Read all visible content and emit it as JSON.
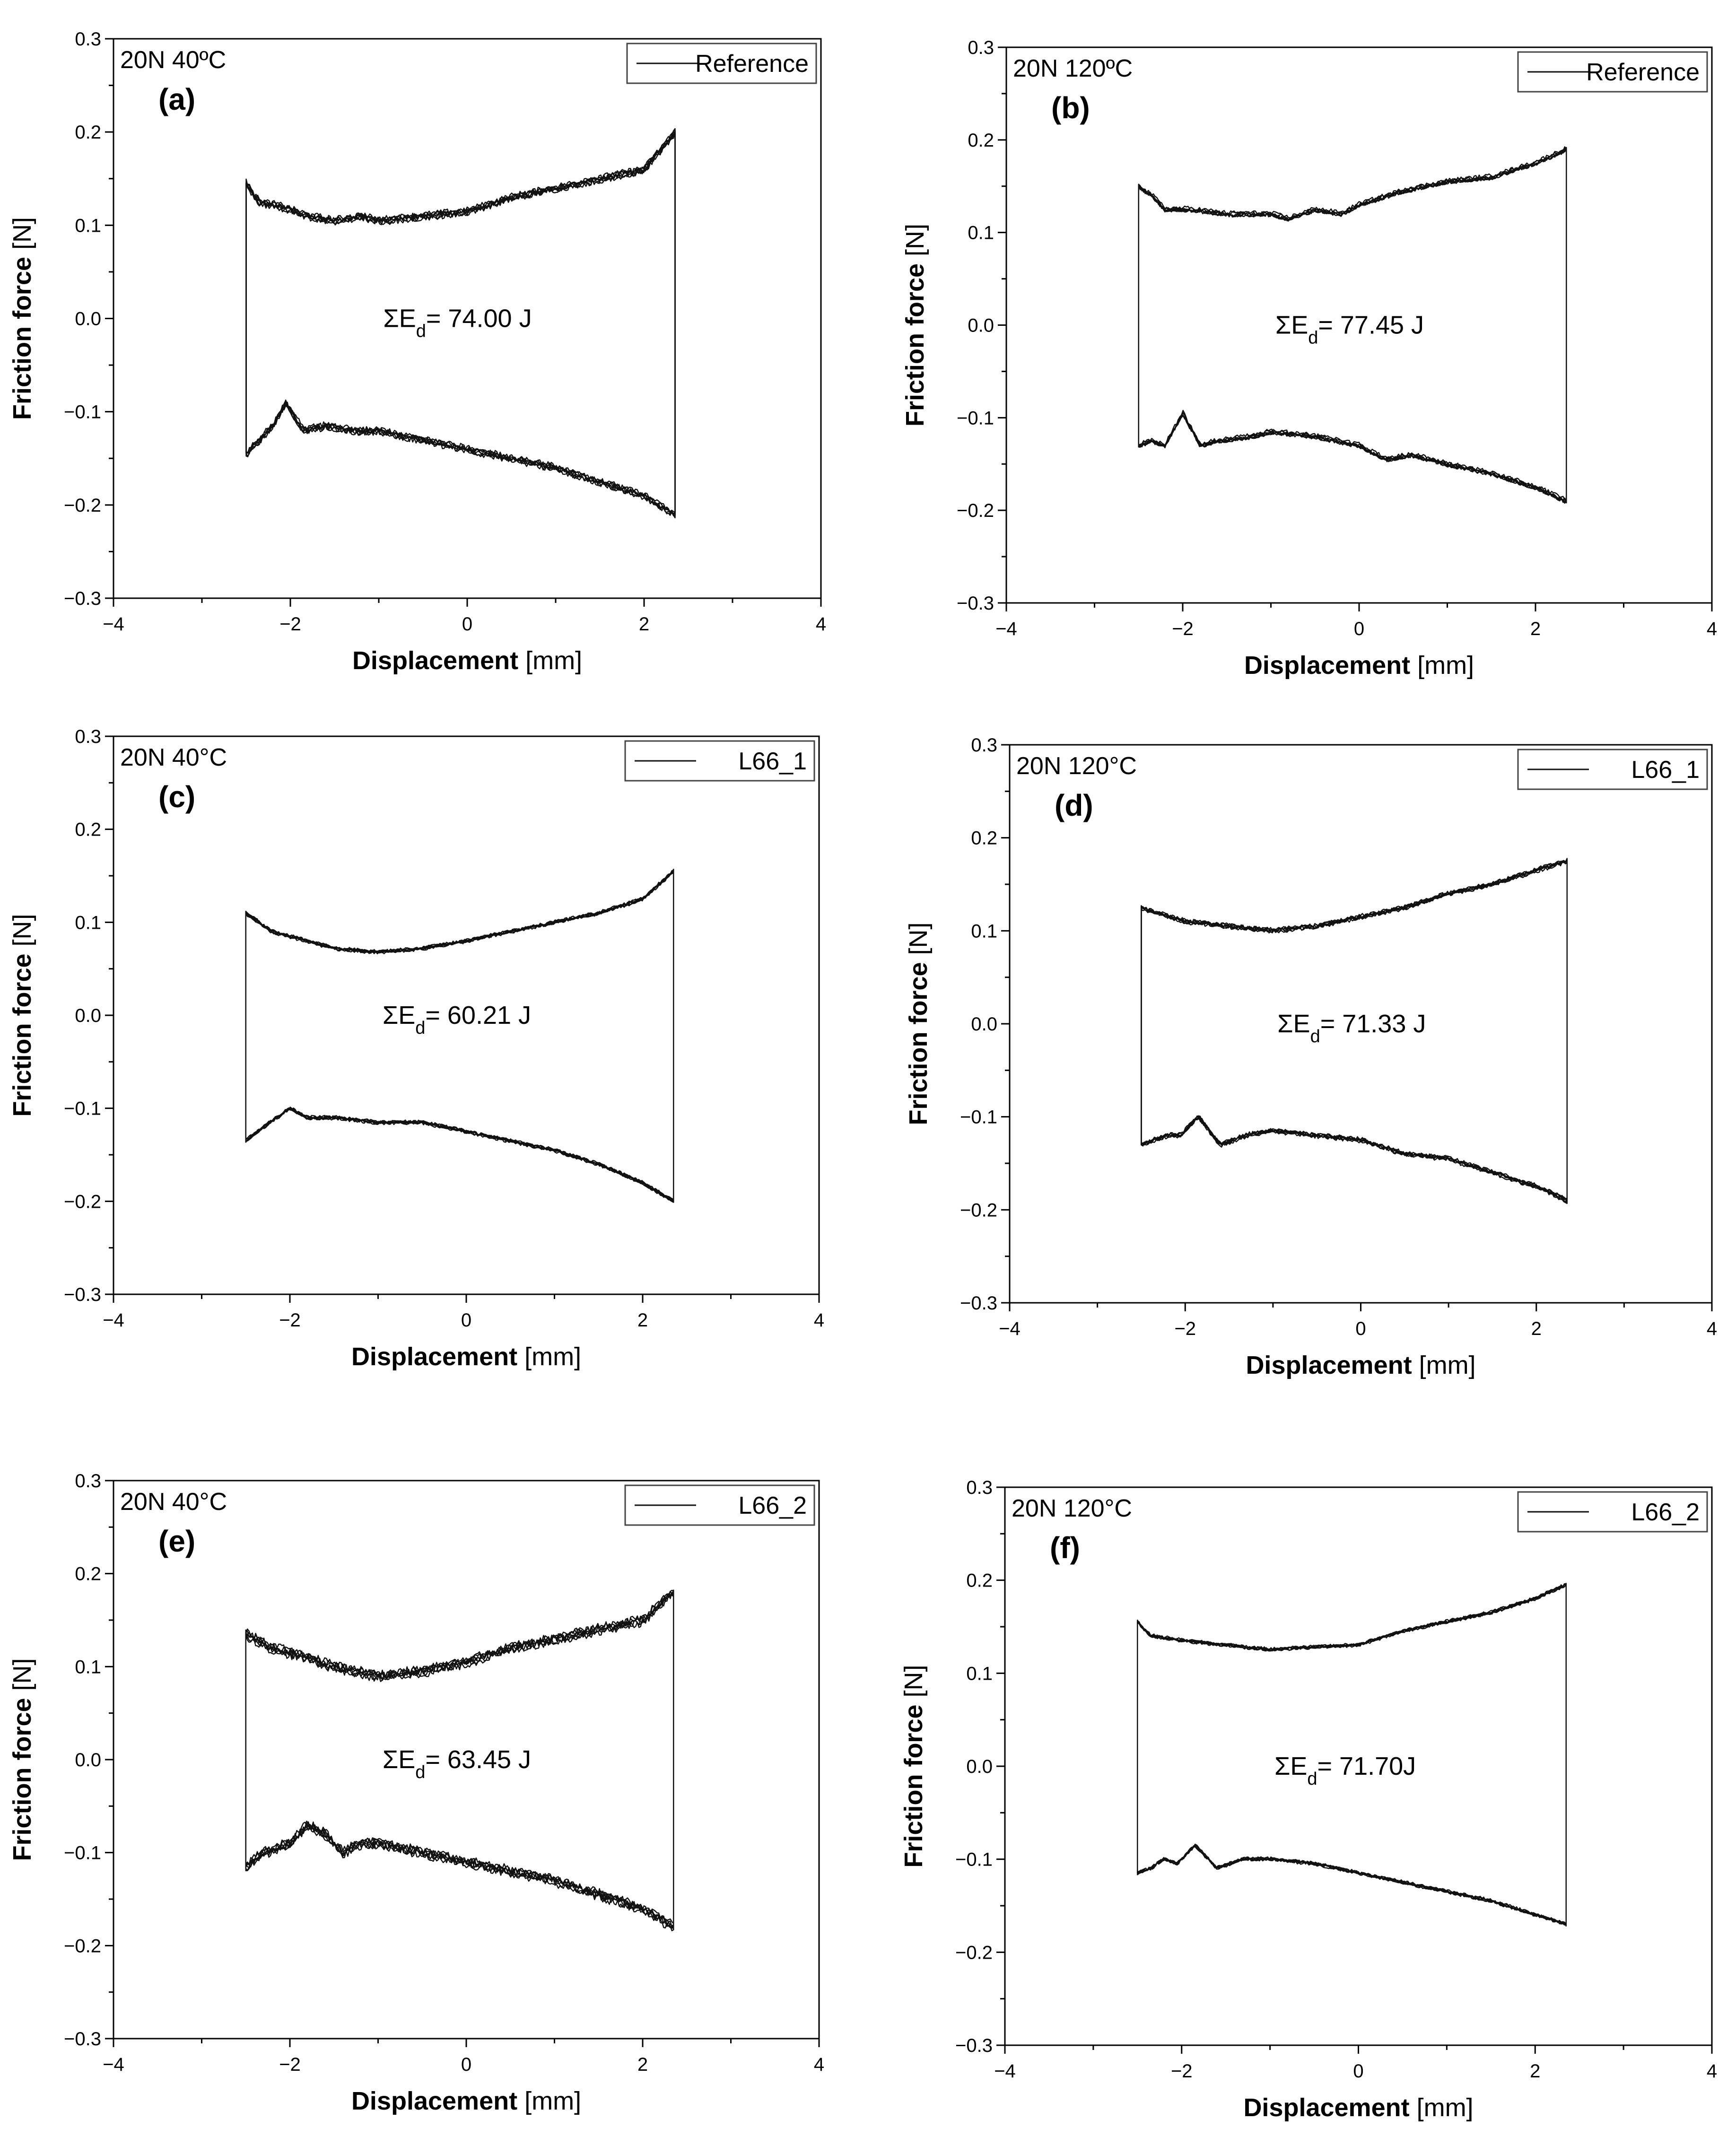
{
  "figure": {
    "common": {
      "xlabel_bold": "Displacement",
      "xlabel_unit": " [mm]",
      "ylabel_bold": "Friction force",
      "ylabel_unit": " [N]",
      "energy_prefix": "ΣE",
      "energy_subscript": "d",
      "xlim": [
        -4,
        4
      ],
      "ylim": [
        -0.3,
        0.3
      ],
      "xticks": [
        -4,
        -2,
        0,
        2,
        4
      ],
      "xtick_labels": [
        "−4",
        "−2",
        "0",
        "2",
        "4"
      ],
      "yticks": [
        -0.3,
        -0.2,
        -0.1,
        0.0,
        0.1,
        0.2,
        0.3
      ],
      "ytick_labels": [
        "−0.3",
        "−0.2",
        "−0.1",
        "0.0",
        "0.1",
        "0.2",
        "0.3"
      ],
      "line_color": "#111111"
    }
  },
  "chart_data": [
    {
      "type": "line",
      "panel": "(a)",
      "condition": "20N 40ºC",
      "legend": "Reference",
      "energy_value": "= 74.00 J",
      "xlabel": "Displacement [mm]",
      "ylabel": "Friction force [N]",
      "xlim": [
        -4,
        4
      ],
      "ylim": [
        -0.3,
        0.3
      ],
      "x_range": [
        -2.5,
        2.35
      ],
      "upper": {
        "x": [
          -2.5,
          -2.35,
          -2.1,
          -1.8,
          -1.5,
          -1.2,
          -1.0,
          -0.5,
          0.0,
          0.5,
          1.0,
          1.5,
          2.0,
          2.35
        ],
        "y": [
          0.145,
          0.125,
          0.12,
          0.11,
          0.105,
          0.11,
          0.105,
          0.11,
          0.115,
          0.13,
          0.14,
          0.15,
          0.16,
          0.2
        ]
      },
      "lower": {
        "x": [
          -2.5,
          -2.35,
          -2.2,
          -2.05,
          -1.85,
          -1.6,
          -1.3,
          -1.0,
          -0.5,
          0.0,
          0.5,
          1.0,
          1.5,
          2.0,
          2.35
        ],
        "y": [
          -0.145,
          -0.13,
          -0.115,
          -0.09,
          -0.12,
          -0.115,
          -0.12,
          -0.12,
          -0.13,
          -0.14,
          -0.15,
          -0.16,
          -0.175,
          -0.19,
          -0.21
        ]
      },
      "noise": 0.006
    },
    {
      "type": "line",
      "panel": "(b)",
      "condition": "20N 120ºC",
      "legend": "Reference",
      "energy_value": "= 77.45 J",
      "xlabel": "Displacement [mm]",
      "ylabel": "Friction force [N]",
      "xlim": [
        -4,
        4
      ],
      "ylim": [
        -0.3,
        0.3
      ],
      "x_range": [
        -2.5,
        2.35
      ],
      "upper": {
        "x": [
          -2.5,
          -2.35,
          -2.2,
          -1.9,
          -1.5,
          -1.0,
          -0.8,
          -0.5,
          -0.2,
          0.0,
          0.5,
          1.0,
          1.5,
          2.0,
          2.35
        ],
        "y": [
          0.15,
          0.14,
          0.125,
          0.125,
          0.12,
          0.12,
          0.115,
          0.125,
          0.12,
          0.13,
          0.145,
          0.155,
          0.16,
          0.175,
          0.19
        ]
      },
      "lower": {
        "x": [
          -2.5,
          -2.35,
          -2.2,
          -2.0,
          -1.8,
          -1.6,
          -1.2,
          -1.0,
          -0.5,
          0.0,
          0.3,
          0.6,
          1.0,
          1.5,
          2.0,
          2.35
        ],
        "y": [
          -0.13,
          -0.125,
          -0.13,
          -0.095,
          -0.13,
          -0.125,
          -0.12,
          -0.115,
          -0.12,
          -0.13,
          -0.145,
          -0.14,
          -0.15,
          -0.16,
          -0.175,
          -0.19
        ]
      },
      "noise": 0.004
    },
    {
      "type": "line",
      "panel": "(c)",
      "condition": "20N 40°C",
      "legend": "L66_1",
      "energy_value": "= 60.21 J",
      "xlabel": "Displacement [mm]",
      "ylabel": "Friction force [N]",
      "xlim": [
        -4,
        4
      ],
      "ylim": [
        -0.3,
        0.3
      ],
      "x_range": [
        -2.5,
        2.35
      ],
      "upper": {
        "x": [
          -2.5,
          -2.2,
          -1.8,
          -1.5,
          -1.0,
          -0.5,
          0.0,
          0.5,
          1.0,
          1.5,
          2.0,
          2.35
        ],
        "y": [
          0.11,
          0.09,
          0.08,
          0.072,
          0.068,
          0.072,
          0.08,
          0.09,
          0.1,
          0.11,
          0.125,
          0.155
        ]
      },
      "lower": {
        "x": [
          -2.5,
          -2.3,
          -2.0,
          -1.8,
          -1.5,
          -1.0,
          -0.5,
          0.0,
          0.5,
          1.0,
          1.5,
          2.0,
          2.35
        ],
        "y": [
          -0.135,
          -0.12,
          -0.1,
          -0.11,
          -0.11,
          -0.115,
          -0.115,
          -0.125,
          -0.135,
          -0.145,
          -0.16,
          -0.18,
          -0.2
        ]
      },
      "noise": 0.003
    },
    {
      "type": "line",
      "panel": "(d)",
      "condition": "20N 120°C",
      "legend": "L66_1",
      "energy_value": "= 71.33 J",
      "xlabel": "Displacement [mm]",
      "ylabel": "Friction force [N]",
      "xlim": [
        -4,
        4
      ],
      "ylim": [
        -0.3,
        0.3
      ],
      "x_range": [
        -2.5,
        2.35
      ],
      "upper": {
        "x": [
          -2.5,
          -2.35,
          -2.0,
          -1.5,
          -1.0,
          -0.5,
          0.0,
          0.5,
          1.0,
          1.5,
          2.0,
          2.35
        ],
        "y": [
          0.125,
          0.12,
          0.11,
          0.105,
          0.1,
          0.105,
          0.115,
          0.125,
          0.14,
          0.15,
          0.165,
          0.175
        ]
      },
      "lower": {
        "x": [
          -2.5,
          -2.35,
          -2.2,
          -2.05,
          -1.85,
          -1.6,
          -1.3,
          -1.0,
          -0.5,
          0.0,
          0.5,
          1.0,
          1.5,
          2.0,
          2.35
        ],
        "y": [
          -0.13,
          -0.125,
          -0.12,
          -0.12,
          -0.1,
          -0.13,
          -0.12,
          -0.115,
          -0.12,
          -0.125,
          -0.14,
          -0.145,
          -0.16,
          -0.175,
          -0.19
        ]
      },
      "noise": 0.004
    },
    {
      "type": "line",
      "panel": "(e)",
      "condition": "20N 40°C",
      "legend": "L66_2",
      "energy_value": "= 63.45 J",
      "xlabel": "Displacement [mm]",
      "ylabel": "Friction force [N]",
      "xlim": [
        -4,
        4
      ],
      "ylim": [
        -0.3,
        0.3
      ],
      "x_range": [
        -2.5,
        2.35
      ],
      "upper": {
        "x": [
          -2.5,
          -2.2,
          -1.8,
          -1.5,
          -1.0,
          -0.5,
          0.0,
          0.5,
          1.0,
          1.5,
          2.0,
          2.35
        ],
        "y": [
          0.135,
          0.12,
          0.11,
          0.1,
          0.09,
          0.095,
          0.105,
          0.12,
          0.13,
          0.14,
          0.15,
          0.18
        ]
      },
      "lower": {
        "x": [
          -2.5,
          -2.3,
          -2.0,
          -1.8,
          -1.6,
          -1.4,
          -1.2,
          -1.0,
          -0.5,
          0.0,
          0.5,
          1.0,
          1.5,
          2.0,
          2.35
        ],
        "y": [
          -0.115,
          -0.1,
          -0.09,
          -0.07,
          -0.08,
          -0.1,
          -0.09,
          -0.09,
          -0.1,
          -0.11,
          -0.12,
          -0.13,
          -0.145,
          -0.16,
          -0.18
        ]
      },
      "noise": 0.008
    },
    {
      "type": "line",
      "panel": "(f)",
      "condition": "20N 120°C",
      "legend": "L66_2",
      "energy_value": "= 71.70J",
      "xlabel": "Displacement [mm]",
      "ylabel": "Friction force [N]",
      "xlim": [
        -4,
        4
      ],
      "ylim": [
        -0.3,
        0.3
      ],
      "x_range": [
        -2.5,
        2.35
      ],
      "upper": {
        "x": [
          -2.5,
          -2.35,
          -2.0,
          -1.5,
          -1.0,
          -0.5,
          0.0,
          0.5,
          1.0,
          1.5,
          2.0,
          2.35
        ],
        "y": [
          0.155,
          0.14,
          0.135,
          0.13,
          0.125,
          0.128,
          0.13,
          0.145,
          0.155,
          0.165,
          0.18,
          0.195
        ]
      },
      "lower": {
        "x": [
          -2.5,
          -2.35,
          -2.2,
          -2.05,
          -1.85,
          -1.6,
          -1.3,
          -1.0,
          -0.5,
          0.0,
          0.5,
          1.0,
          1.5,
          2.0,
          2.35
        ],
        "y": [
          -0.115,
          -0.11,
          -0.1,
          -0.105,
          -0.085,
          -0.11,
          -0.1,
          -0.1,
          -0.105,
          -0.115,
          -0.125,
          -0.135,
          -0.145,
          -0.16,
          -0.17
        ]
      },
      "noise": 0.003
    }
  ]
}
